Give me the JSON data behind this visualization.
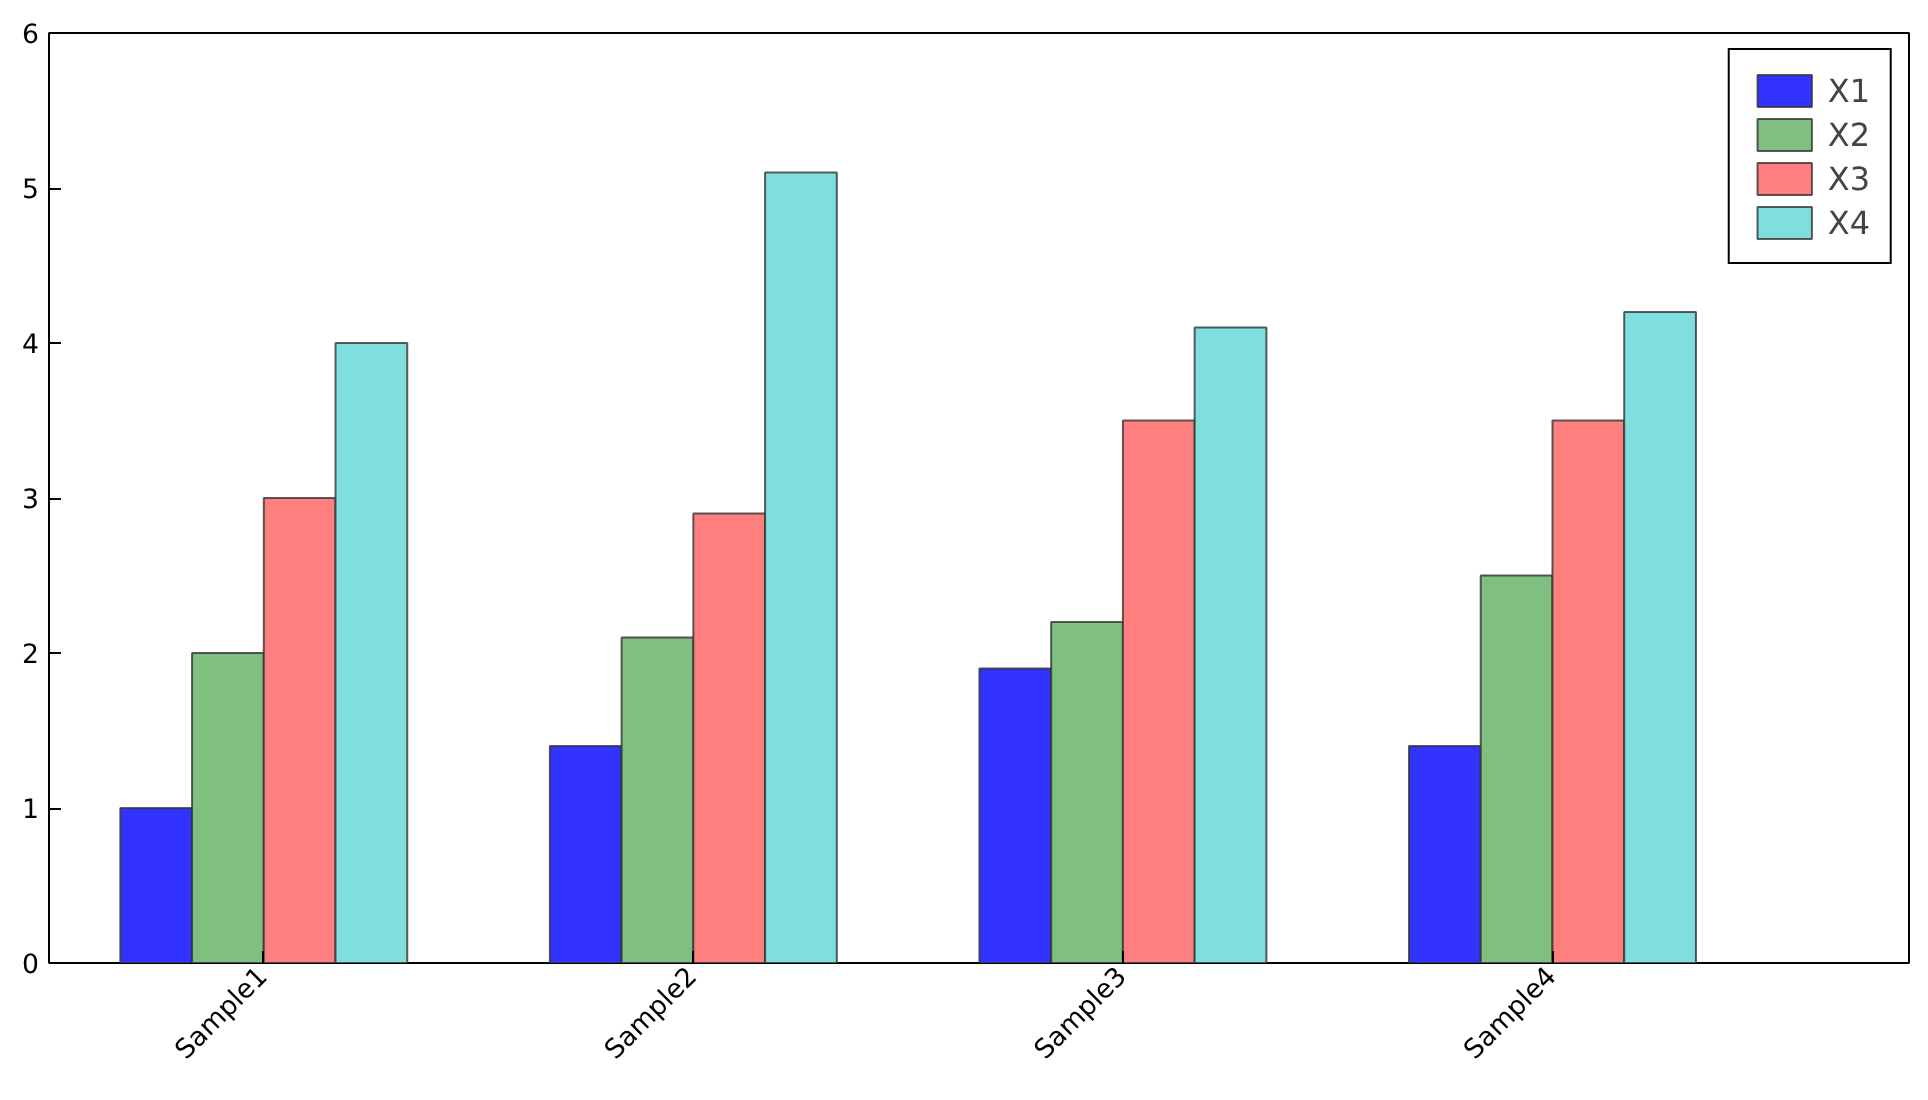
{
  "chart_data": {
    "type": "bar",
    "categories": [
      "Sample1",
      "Sample2",
      "Sample3",
      "Sample4"
    ],
    "series": [
      {
        "name": "X1",
        "color": "#3333ff",
        "values": [
          1,
          1.4,
          1.9,
          1.4
        ]
      },
      {
        "name": "X2",
        "color": "#7fbf7f",
        "values": [
          2,
          2.1,
          2.2,
          2.5
        ]
      },
      {
        "name": "X3",
        "color": "#ff7f7f",
        "values": [
          3,
          2.9,
          3.5,
          3.5
        ]
      },
      {
        "name": "X4",
        "color": "#7fdfdf",
        "values": [
          4,
          5.1,
          4.1,
          4.2
        ]
      }
    ],
    "ylim": [
      0,
      6
    ],
    "yticks": [
      0,
      1,
      2,
      3,
      4,
      5,
      6
    ],
    "grid": false,
    "legend": "top right"
  }
}
